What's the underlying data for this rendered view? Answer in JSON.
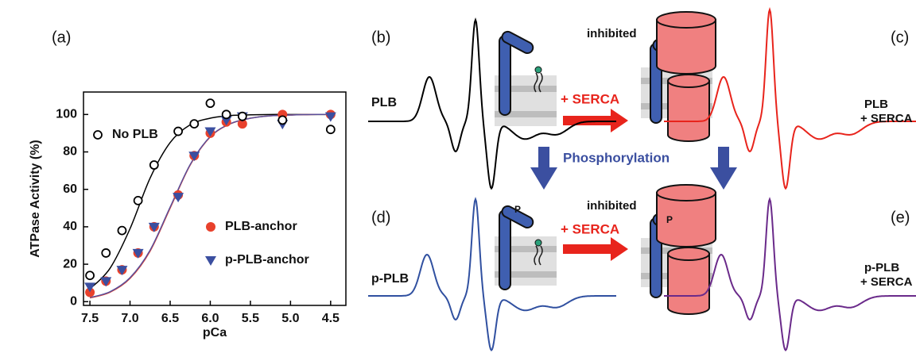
{
  "chart_data": {
    "type": "scatter",
    "xlabel": "pCa",
    "ylabel": "ATPase Activity (%)",
    "xlim": [
      7.58,
      4.31
    ],
    "ylim": [
      -2,
      112
    ],
    "xticks": [
      7.5,
      {
        "value": 7,
        "label": "7.0"
      },
      6.5,
      {
        "value": 6,
        "label": "6.0"
      },
      5.5,
      {
        "value": 5,
        "label": "5.0"
      },
      4.5
    ],
    "yticks": [
      0,
      20,
      40,
      60,
      80,
      100
    ],
    "x": [
      7.5,
      7.3,
      7.1,
      6.9,
      6.7,
      6.4,
      6.2,
      6.0,
      5.8,
      5.6,
      5.1,
      4.5
    ],
    "series": [
      {
        "name": "No PLB",
        "color": "#000000",
        "marker": "open-circle",
        "values": [
          14,
          26,
          38,
          54,
          73,
          91,
          95,
          106,
          100,
          99,
          97,
          92
        ]
      },
      {
        "name": "PLB-anchor",
        "color": "#e8412c",
        "marker": "circle",
        "values": [
          5,
          11,
          17,
          26,
          40,
          57,
          78,
          90,
          96,
          95,
          100,
          100
        ]
      },
      {
        "name": "p-PLB-anchor",
        "color": "#3b4fa0",
        "marker": "triangle",
        "values": [
          8,
          11,
          17,
          26,
          40,
          56,
          78,
          91,
          97,
          99,
          95,
          99
        ]
      }
    ],
    "fits": [
      {
        "color": "#000000",
        "x": [
          7.5,
          7.25,
          7.0,
          6.75,
          6.5,
          6.25,
          6.0,
          5.75,
          5.5,
          5.25,
          5.0,
          4.75,
          4.5
        ],
        "values": [
          6.8,
          17.8,
          39,
          66,
          85,
          94.5,
          98,
          99.4,
          99.8,
          100,
          100,
          100,
          100
        ]
      },
      {
        "color": "#e8412c",
        "x": [
          7.5,
          7.25,
          7.0,
          6.75,
          6.5,
          6.25,
          6.0,
          5.75,
          5.5,
          5.25,
          5.0,
          4.75,
          4.5
        ],
        "values": [
          2,
          5,
          12.4,
          27,
          50,
          73,
          88,
          95,
          98,
          99.3,
          99.7,
          100,
          100
        ]
      },
      {
        "color": "#5a4f9a",
        "x": [
          7.5,
          7.25,
          7.0,
          6.75,
          6.5,
          6.25,
          6.0,
          5.75,
          5.5,
          5.25,
          5.0,
          4.75,
          4.5
        ],
        "values": [
          2.2,
          5.3,
          12.8,
          27.5,
          50.5,
          73.3,
          88.2,
          95.1,
          98,
          99.3,
          99.7,
          100,
          100
        ]
      }
    ]
  },
  "panel_labels": [
    "(a)",
    "(b)",
    "(c)",
    "(d)",
    "(e)"
  ],
  "diagram": {
    "top_left": "PLB",
    "top_right": [
      "PLB",
      "+ SERCA"
    ],
    "bottom_left": "p-PLB",
    "bottom_right": [
      "p-PLB",
      "+ SERCA"
    ],
    "arrow_top": "+ SERCA",
    "arrow_bottom": "+ SERCA",
    "inhibited_top": "inhibited",
    "inhibited_bottom": "inhibited",
    "phosphorylation": "Phosphorylation",
    "phospho_left": "P",
    "phospho_right": "P"
  }
}
